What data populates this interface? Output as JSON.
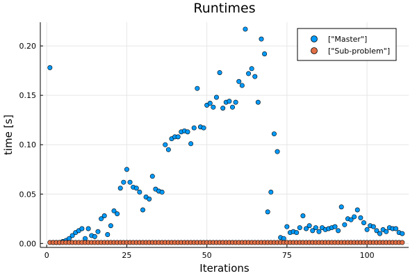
{
  "chart_data": {
    "type": "scatter",
    "title": "Runtimes",
    "xlabel": "Iterations",
    "ylabel": "time [s]",
    "xlim": [
      -2,
      113
    ],
    "ylim": [
      -0.004,
      0.224
    ],
    "x_ticks": [
      0,
      25,
      50,
      75,
      100
    ],
    "x_tick_labels": [
      "0",
      "25",
      "50",
      "75",
      "100"
    ],
    "y_ticks": [
      0,
      0.05,
      0.1,
      0.15,
      0.2
    ],
    "y_tick_labels": [
      "0.00",
      "0.05",
      "0.10",
      "0.15",
      "0.20"
    ],
    "grid": true,
    "legend_position": "top-right",
    "series": [
      {
        "name": "[\"Master\"]",
        "color": "#009AFA",
        "x": [
          1,
          2,
          3,
          4,
          5,
          6,
          7,
          8,
          9,
          10,
          11,
          12,
          13,
          14,
          15,
          16,
          17,
          18,
          19,
          20,
          21,
          22,
          23,
          24,
          25,
          26,
          27,
          28,
          29,
          30,
          31,
          32,
          33,
          34,
          35,
          36,
          37,
          38,
          39,
          40,
          41,
          42,
          43,
          44,
          45,
          46,
          47,
          48,
          49,
          50,
          51,
          52,
          53,
          54,
          55,
          56,
          57,
          58,
          59,
          60,
          61,
          62,
          63,
          64,
          65,
          66,
          67,
          68,
          69,
          70,
          71,
          72,
          73,
          74,
          75,
          76,
          77,
          78,
          79,
          80,
          81,
          82,
          83,
          84,
          85,
          86,
          87,
          88,
          89,
          90,
          91,
          92,
          93,
          94,
          95,
          96,
          97,
          98,
          99,
          100,
          101,
          102,
          103,
          104,
          105,
          106,
          107,
          108,
          109,
          110,
          111
        ],
        "y": [
          0.178,
          0.001,
          0.001,
          0.001,
          0.002,
          0.003,
          0.005,
          0.008,
          0.011,
          0.013,
          0.015,
          0.005,
          0.015,
          0.008,
          0.007,
          0.012,
          0.025,
          0.028,
          0.009,
          0.018,
          0.033,
          0.03,
          0.056,
          0.062,
          0.075,
          0.062,
          0.057,
          0.056,
          0.052,
          0.034,
          0.047,
          0.045,
          0.068,
          0.055,
          0.053,
          0.052,
          0.1,
          0.095,
          0.106,
          0.108,
          0.108,
          0.113,
          0.114,
          0.113,
          0.101,
          0.117,
          0.157,
          0.118,
          0.117,
          0.14,
          0.142,
          0.138,
          0.148,
          0.173,
          0.137,
          0.143,
          0.144,
          0.138,
          0.143,
          0.164,
          0.16,
          0.217,
          0.172,
          0.177,
          0.169,
          0.143,
          0.207,
          0.192,
          0.032,
          0.052,
          0.111,
          0.093,
          0.006,
          0.005,
          0.017,
          0.011,
          0.012,
          0.011,
          0.016,
          0.028,
          0.015,
          0.018,
          0.013,
          0.016,
          0.012,
          0.016,
          0.014,
          0.015,
          0.016,
          0.017,
          0.013,
          0.037,
          0.019,
          0.025,
          0.024,
          0.027,
          0.034,
          0.026,
          0.021,
          0.014,
          0.018,
          0.017,
          0.013,
          0.01,
          0.014,
          0.012,
          0.016,
          0.015,
          0.015,
          0.011,
          0.01
        ]
      },
      {
        "name": "[\"Sub-problem\"]",
        "color": "#E26F46",
        "x": [
          1,
          2,
          3,
          4,
          5,
          6,
          7,
          8,
          9,
          10,
          11,
          12,
          13,
          14,
          15,
          16,
          17,
          18,
          19,
          20,
          21,
          22,
          23,
          24,
          25,
          26,
          27,
          28,
          29,
          30,
          31,
          32,
          33,
          34,
          35,
          36,
          37,
          38,
          39,
          40,
          41,
          42,
          43,
          44,
          45,
          46,
          47,
          48,
          49,
          50,
          51,
          52,
          53,
          54,
          55,
          56,
          57,
          58,
          59,
          60,
          61,
          62,
          63,
          64,
          65,
          66,
          67,
          68,
          69,
          70,
          71,
          72,
          73,
          74,
          75,
          76,
          77,
          78,
          79,
          80,
          81,
          82,
          83,
          84,
          85,
          86,
          87,
          88,
          89,
          90,
          91,
          92,
          93,
          94,
          95,
          96,
          97,
          98,
          99,
          100,
          101,
          102,
          103,
          104,
          105,
          106,
          107,
          108,
          109,
          110,
          111
        ],
        "y": [
          0.001,
          0.001,
          0.001,
          0.001,
          0.001,
          0.001,
          0.001,
          0.001,
          0.001,
          0.001,
          0.001,
          0.001,
          0.001,
          0.001,
          0.001,
          0.001,
          0.001,
          0.001,
          0.001,
          0.001,
          0.001,
          0.001,
          0.001,
          0.001,
          0.001,
          0.001,
          0.001,
          0.001,
          0.001,
          0.001,
          0.001,
          0.001,
          0.001,
          0.001,
          0.001,
          0.001,
          0.001,
          0.001,
          0.001,
          0.001,
          0.001,
          0.001,
          0.001,
          0.001,
          0.001,
          0.001,
          0.001,
          0.001,
          0.001,
          0.001,
          0.001,
          0.001,
          0.001,
          0.001,
          0.001,
          0.001,
          0.001,
          0.001,
          0.001,
          0.001,
          0.001,
          0.001,
          0.001,
          0.001,
          0.001,
          0.001,
          0.001,
          0.001,
          0.001,
          0.001,
          0.001,
          0.001,
          0.001,
          0.001,
          0.001,
          0.001,
          0.001,
          0.001,
          0.001,
          0.001,
          0.001,
          0.001,
          0.001,
          0.001,
          0.001,
          0.001,
          0.001,
          0.001,
          0.001,
          0.001,
          0.001,
          0.001,
          0.001,
          0.001,
          0.001,
          0.001,
          0.001,
          0.001,
          0.001,
          0.001,
          0.001,
          0.001,
          0.001,
          0.001,
          0.001,
          0.001,
          0.001,
          0.001,
          0.001,
          0.001,
          0.001
        ]
      }
    ]
  }
}
